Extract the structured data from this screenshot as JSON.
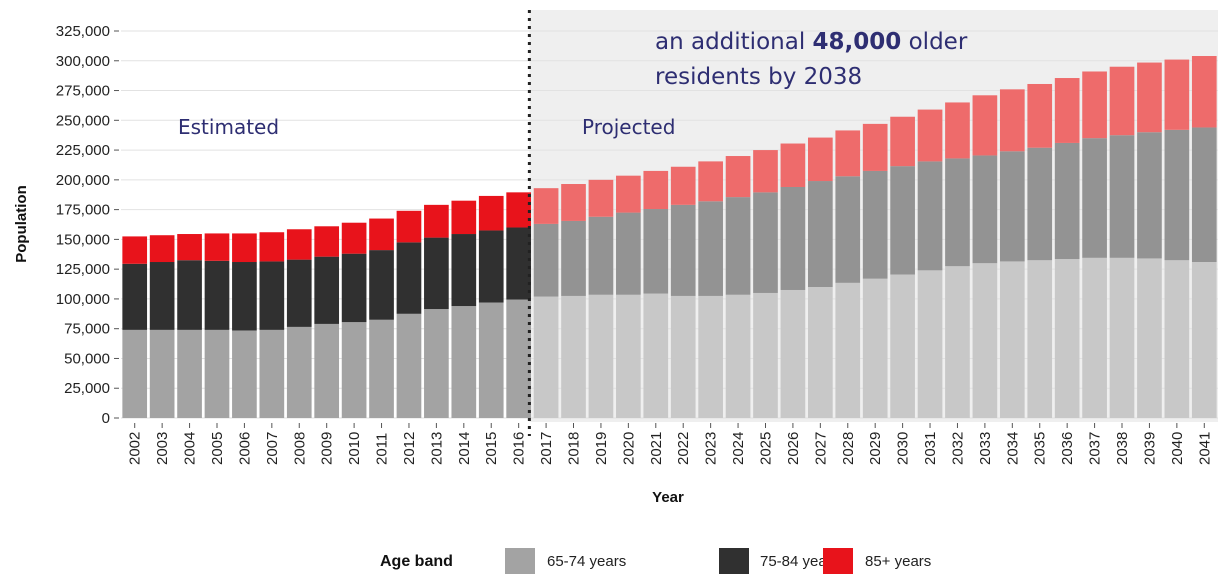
{
  "chart_data": {
    "type": "bar",
    "stacked": true,
    "title": "",
    "xlabel": "Year",
    "ylabel": "Population",
    "ylim": [
      0,
      325000
    ],
    "yticks": [
      0,
      25000,
      50000,
      75000,
      100000,
      125000,
      150000,
      175000,
      200000,
      225000,
      250000,
      275000,
      300000,
      325000
    ],
    "ytick_labels": [
      "0",
      "25,000",
      "50,000",
      "75,000",
      "100,000",
      "125,000",
      "150,000",
      "175,000",
      "200,000",
      "225,000",
      "250,000",
      "275,000",
      "300,000",
      "325,000"
    ],
    "grid": true,
    "categories": [
      "2002",
      "2003",
      "2004",
      "2005",
      "2006",
      "2007",
      "2008",
      "2009",
      "2010",
      "2011",
      "2012",
      "2013",
      "2014",
      "2015",
      "2016",
      "2017",
      "2018",
      "2019",
      "2020",
      "2021",
      "2022",
      "2023",
      "2024",
      "2025",
      "2026",
      "2027",
      "2028",
      "2029",
      "2030",
      "2031",
      "2032",
      "2033",
      "2034",
      "2035",
      "2036",
      "2037",
      "2038",
      "2039",
      "2040",
      "2041"
    ],
    "divider_after": "2016",
    "regions": [
      {
        "label": "Estimated",
        "from": "2002",
        "to": "2016",
        "background": "#ffffff"
      },
      {
        "label": "Projected",
        "from": "2017",
        "to": "2041",
        "background": "#efefef"
      }
    ],
    "annotation": {
      "prefix": "an additional ",
      "bold": "48,000",
      "suffix": " older",
      "line2": "residents by 2038"
    },
    "legend": {
      "title": "Age band",
      "placement": "bottom-center"
    },
    "series": [
      {
        "name": "65-74 years",
        "color_estimated": "#a3a3a3",
        "color_projected": "#c8c8c8",
        "legend_color": "#a3a3a3",
        "values": [
          74000,
          74000,
          74000,
          74000,
          73500,
          74000,
          76500,
          79000,
          80500,
          82500,
          87500,
          91500,
          94000,
          97000,
          99500,
          102000,
          102500,
          103500,
          103500,
          104500,
          102500,
          102500,
          103500,
          105000,
          107500,
          110000,
          113500,
          117000,
          120500,
          124000,
          127500,
          130000,
          131500,
          132500,
          133500,
          134500,
          134500,
          134000,
          132500,
          131000
        ]
      },
      {
        "name": "75-84 years",
        "color_estimated": "#303030",
        "color_projected": "#939393",
        "legend_color": "#303030",
        "values": [
          55500,
          57000,
          58500,
          58000,
          57500,
          57500,
          56500,
          56500,
          57500,
          58500,
          60000,
          60000,
          60500,
          60500,
          60500,
          61000,
          63000,
          65500,
          69000,
          71000,
          76500,
          79500,
          82000,
          84500,
          86500,
          89000,
          89500,
          90500,
          91000,
          91500,
          90500,
          90500,
          92500,
          94500,
          97500,
          100500,
          103000,
          106000,
          109500,
          113000
        ]
      },
      {
        "name": "85+ years",
        "color_estimated": "#e8131b",
        "color_projected": "#ee6b6b",
        "legend_color": "#e8131b",
        "values": [
          23000,
          22500,
          22000,
          23000,
          24000,
          24500,
          25500,
          25500,
          26000,
          26500,
          26500,
          27500,
          28000,
          29000,
          29500,
          30000,
          31000,
          31000,
          31000,
          32000,
          32000,
          33500,
          34500,
          35500,
          36500,
          36500,
          38500,
          39500,
          41500,
          43500,
          47000,
          50500,
          52000,
          53500,
          54500,
          56000,
          57500,
          58500,
          59000,
          60000
        ]
      }
    ]
  }
}
